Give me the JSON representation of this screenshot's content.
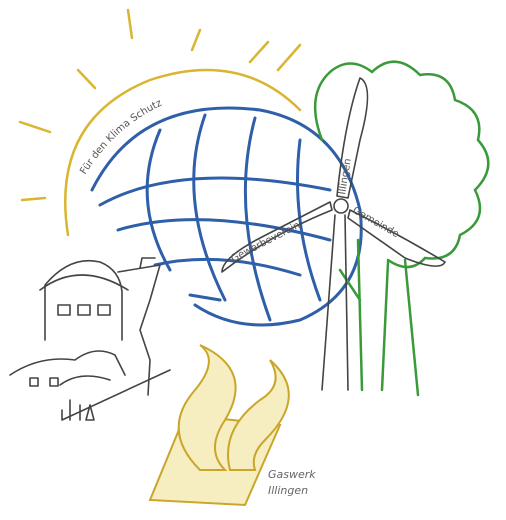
{
  "logo": {
    "arc_text": "Für den Klima Schutz",
    "blades": [
      "Illingen",
      "Gewerbeverein",
      "Gemeinde"
    ],
    "caption": [
      "Gaswerk",
      "Illingen"
    ]
  }
}
